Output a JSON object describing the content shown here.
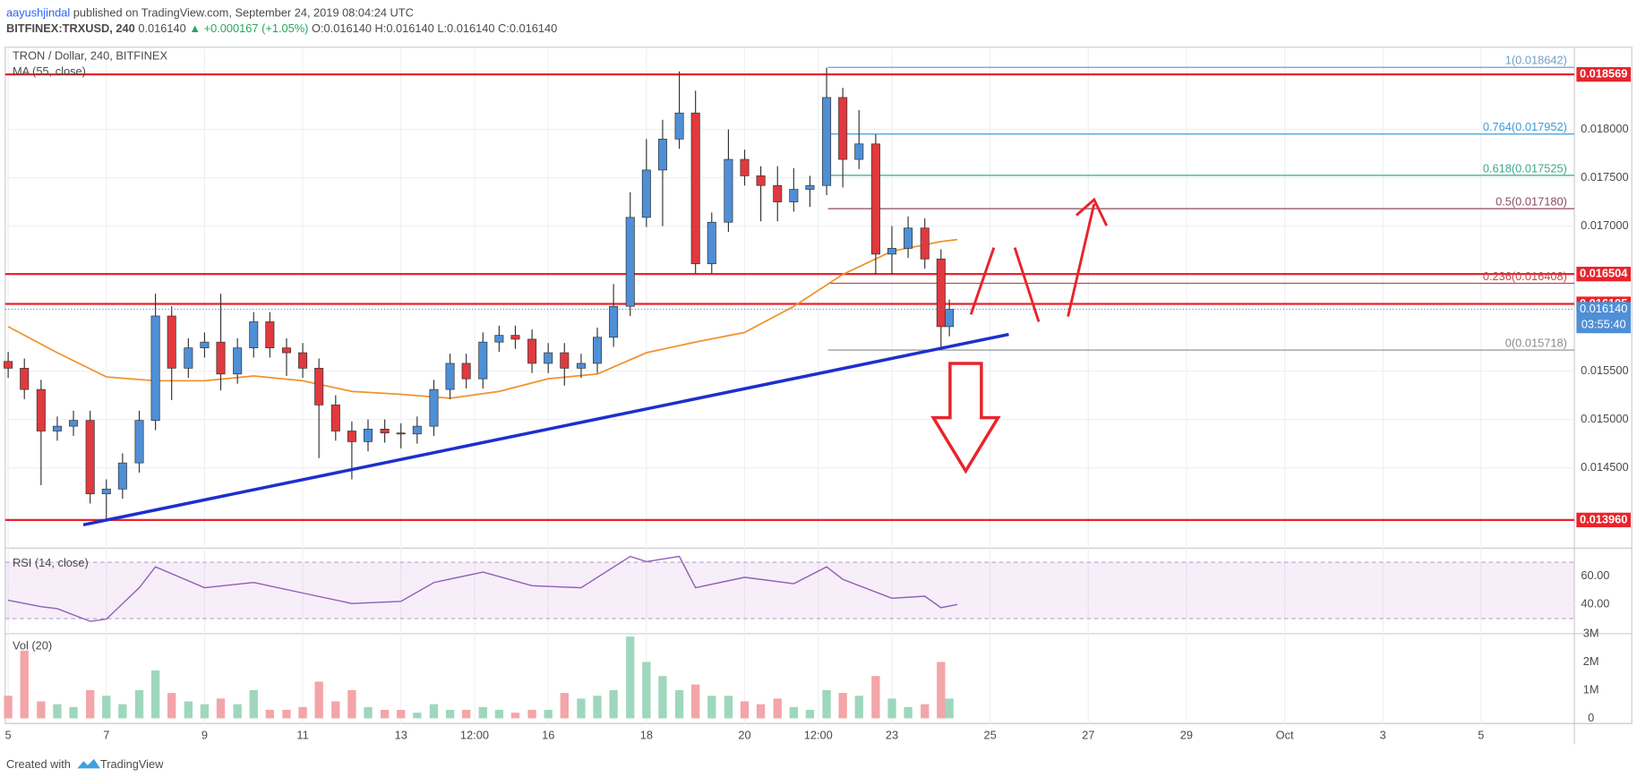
{
  "header": {
    "author": "aayushjindal",
    "published": "published on TradingView.com, September 24, 2019 08:04:24 UTC",
    "symbol": "BITFINEX:TRXUSD, 240",
    "price": "0.016140",
    "change": "▲ +0.000167 (+1.05%)",
    "ohlc": "O:0.016140 H:0.016140 L:0.016140 C:0.016140"
  },
  "footer": {
    "text": "Created with",
    "brand": "TradingView"
  },
  "chart_data": [
    {
      "type": "candlestick",
      "title": "TRON / Dollar, 240, BITFINEX",
      "xlim": [
        4.94,
        36.9
      ],
      "ylim": [
        0.01369,
        0.01885
      ],
      "yticks": [
        {
          "value": 0.0145,
          "label": "0.014500"
        },
        {
          "value": 0.015,
          "label": "0.015000"
        },
        {
          "value": 0.0155,
          "label": "0.015500"
        },
        {
          "value": 0.017,
          "label": "0.017000"
        },
        {
          "value": 0.0175,
          "label": "0.017500"
        },
        {
          "value": 0.018,
          "label": "0.018000"
        }
      ],
      "up_color": "#4f8fd6",
      "down_color": "#e0393e",
      "x": [
        5,
        5.33,
        5.67,
        6,
        6.33,
        6.67,
        7,
        7.33,
        7.67,
        8,
        8.33,
        8.67,
        9,
        9.33,
        9.67,
        10,
        10.33,
        10.67,
        11,
        11.33,
        11.67,
        12,
        12.33,
        12.67,
        13,
        13.33,
        13.67,
        14,
        14.33,
        14.67,
        15,
        15.33,
        15.67,
        16,
        16.33,
        16.67,
        17,
        17.33,
        17.67,
        18,
        18.33,
        18.67,
        19,
        19.33,
        19.67,
        20,
        20.33,
        20.67,
        21,
        21.33,
        21.67,
        22,
        22.33,
        22.67,
        23,
        23.33,
        23.67,
        24,
        24.17
      ],
      "open": [
        0.0156,
        0.01553,
        0.01531,
        0.01488,
        0.01493,
        0.01499,
        0.01423,
        0.01428,
        0.01455,
        0.01499,
        0.01607,
        0.01553,
        0.01574,
        0.0158,
        0.01547,
        0.01574,
        0.01601,
        0.01574,
        0.01569,
        0.01553,
        0.01515,
        0.01488,
        0.01477,
        0.0149,
        0.01486,
        0.01485,
        0.01493,
        0.01531,
        0.01558,
        0.01542,
        0.0158,
        0.01587,
        0.01583,
        0.01558,
        0.01569,
        0.01553,
        0.01558,
        0.01585,
        0.01617,
        0.01709,
        0.01758,
        0.0179,
        0.01817,
        0.01661,
        0.01704,
        0.01769,
        0.01752,
        0.01742,
        0.01725,
        0.01738,
        0.01742,
        0.01833,
        0.01769,
        0.01785,
        0.01671,
        0.01677,
        0.01698,
        0.01666,
        0.01596
      ],
      "high": [
        0.0157,
        0.01563,
        0.01541,
        0.01503,
        0.01509,
        0.01509,
        0.01438,
        0.01465,
        0.01509,
        0.0163,
        0.01617,
        0.01584,
        0.0159,
        0.0163,
        0.01584,
        0.01611,
        0.01611,
        0.01584,
        0.01579,
        0.01563,
        0.01525,
        0.01498,
        0.015,
        0.015,
        0.01496,
        0.01503,
        0.01541,
        0.01568,
        0.01568,
        0.0159,
        0.01597,
        0.01597,
        0.01593,
        0.01579,
        0.01579,
        0.01568,
        0.01595,
        0.0164,
        0.01735,
        0.0179,
        0.0181,
        0.0186,
        0.0184,
        0.01714,
        0.018,
        0.01779,
        0.01762,
        0.01762,
        0.0176,
        0.01752,
        0.01864,
        0.01843,
        0.0182,
        0.01795,
        0.017,
        0.0171,
        0.01708,
        0.01676,
        0.01624
      ],
      "low": [
        0.01543,
        0.01521,
        0.01432,
        0.01478,
        0.01483,
        0.01413,
        0.01396,
        0.01418,
        0.01445,
        0.01489,
        0.0152,
        0.01543,
        0.01564,
        0.0153,
        0.01537,
        0.01564,
        0.01564,
        0.01545,
        0.01543,
        0.0146,
        0.01478,
        0.01438,
        0.01467,
        0.01476,
        0.0147,
        0.01475,
        0.01483,
        0.01521,
        0.01532,
        0.01532,
        0.0157,
        0.01573,
        0.01548,
        0.01548,
        0.01535,
        0.01543,
        0.01548,
        0.01575,
        0.01607,
        0.01699,
        0.017,
        0.0178,
        0.01651,
        0.01651,
        0.01694,
        0.01742,
        0.01705,
        0.01705,
        0.01715,
        0.0172,
        0.01732,
        0.0174,
        0.01759,
        0.0165,
        0.0165,
        0.01667,
        0.01656,
        0.01572,
        0.01586
      ],
      "close": [
        0.01553,
        0.01531,
        0.01488,
        0.01493,
        0.01499,
        0.01423,
        0.01428,
        0.01455,
        0.01499,
        0.01607,
        0.01553,
        0.01574,
        0.0158,
        0.01547,
        0.01574,
        0.01601,
        0.01574,
        0.01569,
        0.01553,
        0.01515,
        0.01488,
        0.01477,
        0.0149,
        0.01486,
        0.01485,
        0.01493,
        0.01531,
        0.01558,
        0.01542,
        0.0158,
        0.01587,
        0.01583,
        0.01558,
        0.01569,
        0.01553,
        0.01558,
        0.01585,
        0.01617,
        0.01709,
        0.01758,
        0.0179,
        0.01817,
        0.01661,
        0.01704,
        0.01769,
        0.01752,
        0.01742,
        0.01725,
        0.01738,
        0.01742,
        0.01833,
        0.01769,
        0.01785,
        0.01671,
        0.01677,
        0.01698,
        0.01666,
        0.01596,
        0.01614
      ],
      "ma": {
        "name": "MA (55, close)",
        "color": "#f0932b",
        "x": [
          5,
          6,
          7,
          8,
          9,
          10,
          11,
          12,
          13,
          14,
          15,
          16,
          17,
          18,
          19,
          20,
          21,
          22,
          23,
          24,
          24.33
        ],
        "values": [
          0.01596,
          0.01569,
          0.01544,
          0.0154,
          0.0154,
          0.01545,
          0.0154,
          0.01529,
          0.01526,
          0.01522,
          0.01529,
          0.01542,
          0.01547,
          0.01569,
          0.0158,
          0.0159,
          0.01617,
          0.0165,
          0.01674,
          0.01684,
          0.01686
        ]
      },
      "levels": [
        0.018569,
        0.016504,
        0.016195,
        {
          "value": 0.01396,
          "label": "0.013960"
        }
      ],
      "level_color": "#e8242b",
      "fib_levels": [
        {
          "value": 0.018642,
          "label": "1(0.018642)",
          "color": "#6f9fc4"
        },
        {
          "value": 0.017952,
          "label": "0.764(0.017952)",
          "color": "#3f9bd8"
        },
        {
          "value": 0.017525,
          "label": "0.618(0.017525)",
          "color": "#3aa88a"
        },
        {
          "value": 0.01718,
          "label": "0.5(0.017180)",
          "color": "#8a4b5c"
        },
        {
          "value": 0.016408,
          "label": "0.236(0.016408)",
          "color": "#c4484f"
        },
        {
          "value": 0.015718,
          "label": "0(0.015718)",
          "color": "#8a8a8a"
        }
      ],
      "trendline": {
        "color": "#1e2fce",
        "x": [
          6.53,
          25.38
        ],
        "values": [
          0.01391,
          0.01588
        ]
      },
      "last_price": {
        "value": 0.01614,
        "label": "0.016140"
      },
      "countdown": "03:55:40"
    },
    {
      "type": "line",
      "title": "RSI (14, close)",
      "color": "#8e5fb3",
      "band": [
        30,
        70
      ],
      "xlim": [
        4.94,
        36.9
      ],
      "ylim": [
        20,
        77
      ],
      "yticks": [
        {
          "value": 40,
          "label": "40.00"
        },
        {
          "value": 60,
          "label": "60.00"
        }
      ],
      "x": [
        5,
        5.67,
        6,
        6.67,
        7,
        7.67,
        8,
        9,
        10,
        11,
        12,
        13,
        13.67,
        14.67,
        15.67,
        16.67,
        17.67,
        18,
        18.67,
        19,
        20,
        21,
        21.67,
        22,
        23,
        23.67,
        24,
        24.33
      ],
      "values": [
        43,
        38.5,
        37,
        28.1,
        29.6,
        51.9,
        66.7,
        51.9,
        55.6,
        48.1,
        40.7,
        42.2,
        55.6,
        63,
        53.3,
        51.9,
        74.1,
        70.4,
        74.1,
        51.9,
        59.3,
        54.8,
        66.7,
        57.8,
        44.4,
        45.9,
        37.8,
        40
      ]
    },
    {
      "type": "bar",
      "title": "Vol (20)",
      "up_color": "#9ed7bd",
      "down_color": "#f3a5a8",
      "xlim": [
        4.94,
        36.9
      ],
      "ylim": [
        -110000,
        3000000
      ],
      "yticks": [
        0,
        {
          "value": 1000000,
          "label": "1M"
        },
        {
          "value": 2000000,
          "label": "2M"
        },
        {
          "value": 3000000,
          "label": "3M"
        }
      ],
      "xticks": [
        5,
        7,
        9,
        11,
        13,
        {
          "value": 14.5,
          "label": "12:00"
        },
        16,
        18,
        20,
        {
          "value": 21.5,
          "label": "12:00"
        },
        23,
        25,
        27,
        29,
        {
          "value": 31,
          "label": "Oct"
        },
        {
          "value": 33,
          "label": "3"
        },
        {
          "value": 35,
          "label": "5"
        }
      ],
      "x": [
        5,
        5.33,
        5.67,
        6,
        6.33,
        6.67,
        7,
        7.33,
        7.67,
        8,
        8.33,
        8.67,
        9,
        9.33,
        9.67,
        10,
        10.33,
        10.67,
        11,
        11.33,
        11.67,
        12,
        12.33,
        12.67,
        13,
        13.33,
        13.67,
        14,
        14.33,
        14.67,
        15,
        15.33,
        15.67,
        16,
        16.33,
        16.67,
        17,
        17.33,
        17.67,
        18,
        18.33,
        18.67,
        19,
        19.33,
        19.67,
        20,
        20.33,
        20.67,
        21,
        21.33,
        21.67,
        22,
        22.33,
        22.67,
        23,
        23.33,
        23.67,
        24,
        24.17
      ],
      "values": [
        800000,
        2400000,
        600000,
        500000,
        400000,
        1000000,
        800000,
        500000,
        1000000,
        1700000,
        900000,
        600000,
        500000,
        700000,
        500000,
        1000000,
        300000,
        300000,
        400000,
        1300000,
        600000,
        1000000,
        400000,
        300000,
        300000,
        200000,
        500000,
        300000,
        300000,
        400000,
        300000,
        200000,
        300000,
        300000,
        900000,
        700000,
        800000,
        1000000,
        2900000,
        2000000,
        1500000,
        1000000,
        1200000,
        800000,
        800000,
        600000,
        500000,
        700000,
        400000,
        300000,
        1000000,
        900000,
        800000,
        1500000,
        700000,
        400000,
        500000,
        2000000,
        700000
      ]
    }
  ]
}
